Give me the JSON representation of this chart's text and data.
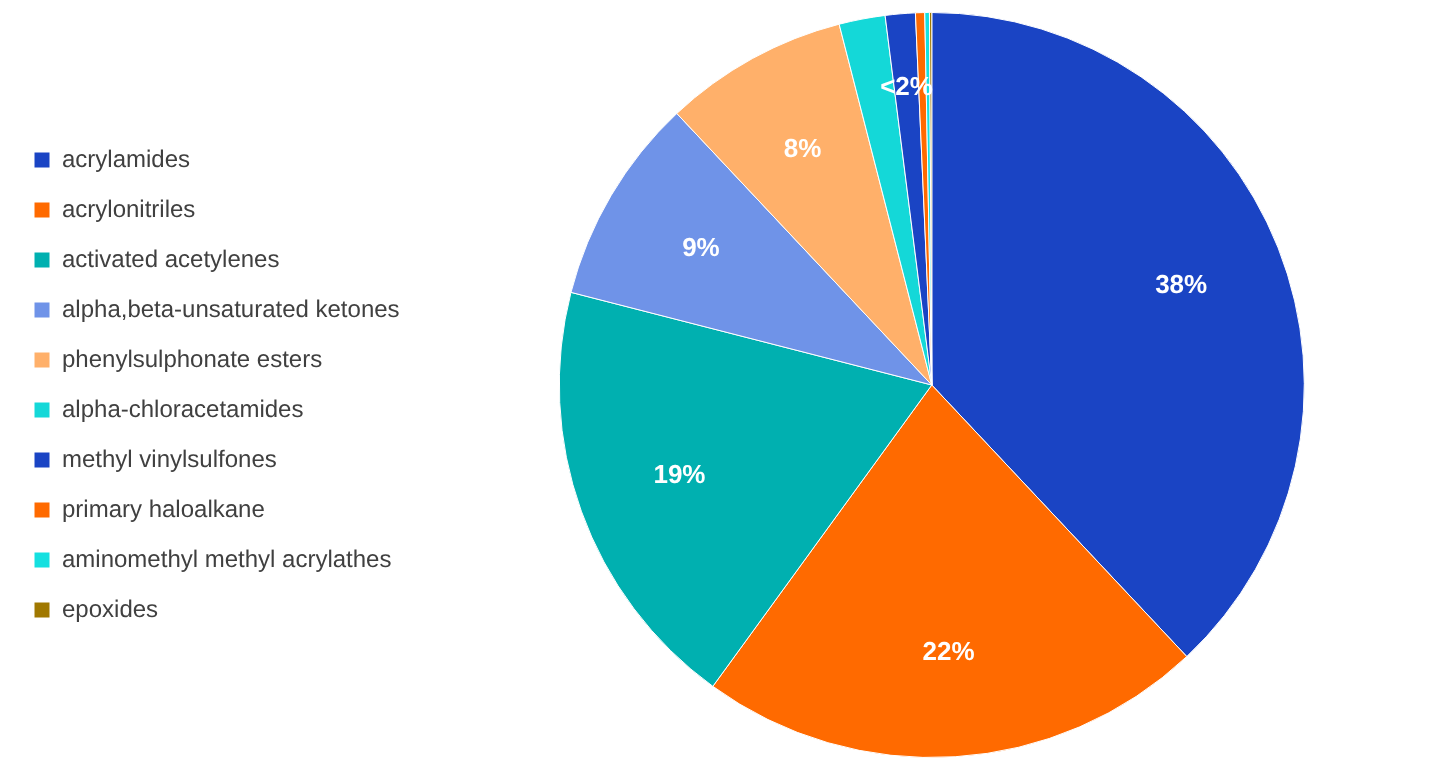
{
  "chart_data": {
    "type": "pie",
    "categories": [
      "acrylamides",
      "acrylonitriles",
      "activated acetylenes",
      "alpha,beta-unsaturated ketones",
      "phenylsulphonate esters",
      "alpha-chloracetamides",
      "methyl vinylsulfones",
      "primary haloalkane",
      "aminomethyl methyl acrylathes",
      "epoxides"
    ],
    "values": [
      38,
      22,
      19,
      9,
      8,
      2,
      1.3,
      0.4,
      0.2,
      0.1
    ],
    "colors": [
      "#1a44c4",
      "#ff6a00",
      "#00b0b0",
      "#6f93e8",
      "#ffb06a",
      "#14d8d8",
      "#1a44c4",
      "#ff6a00",
      "#14e0e0",
      "#a07800"
    ],
    "value_labels": [
      "38%",
      "22%",
      "19%",
      "9%",
      "8%",
      null,
      "<2%",
      null,
      null,
      null
    ],
    "legend": "left"
  }
}
